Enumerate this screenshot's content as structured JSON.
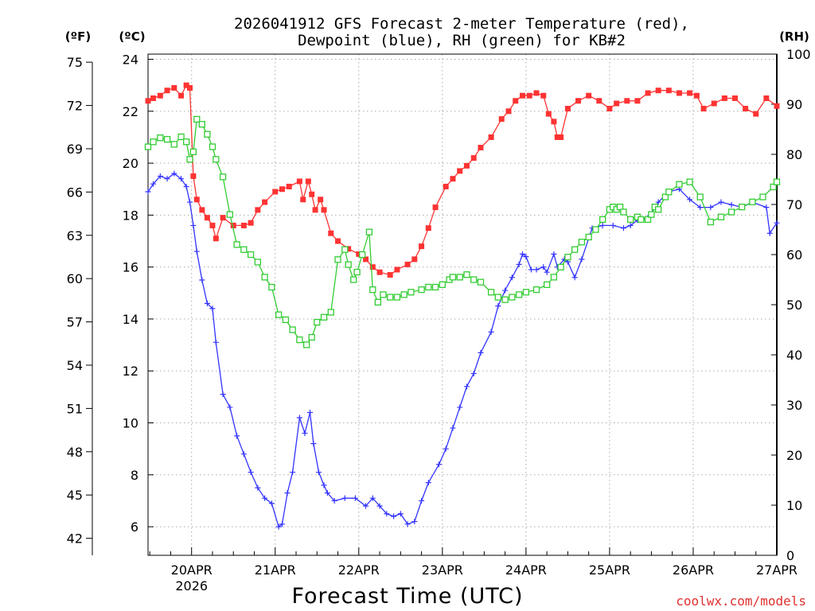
{
  "chart_data": {
    "type": "line",
    "title_line1": "2026041912 GFS Forecast 2-meter Temperature (red),",
    "title_line2": "Dewpoint (blue), RH (green) for KB#2",
    "xlabel": "Forecast Time (UTC)",
    "watermark": "coolwx.com/models",
    "unit_labels": {
      "fahrenheit": "(ºF)",
      "celsius": "(ºC)",
      "rh": "(RH)"
    },
    "x_range_hours": [
      -12.5,
      168
    ],
    "y_left_c_range": [
      4.9,
      24.2
    ],
    "y_right_rh_range": [
      0,
      100
    ],
    "x_ticks": [
      {
        "hour": 0,
        "label": "20APR",
        "sublabel": "2026"
      },
      {
        "hour": 24,
        "label": "21APR",
        "sublabel": ""
      },
      {
        "hour": 48,
        "label": "22APR",
        "sublabel": ""
      },
      {
        "hour": 72,
        "label": "23APR",
        "sublabel": ""
      },
      {
        "hour": 96,
        "label": "24APR",
        "sublabel": ""
      },
      {
        "hour": 120,
        "label": "25APR",
        "sublabel": ""
      },
      {
        "hour": 144,
        "label": "26APR",
        "sublabel": ""
      },
      {
        "hour": 168,
        "label": "27APR",
        "sublabel": ""
      }
    ],
    "y_celsius_ticks": [
      "6",
      "8",
      "10",
      "12",
      "14",
      "16",
      "18",
      "20",
      "22",
      "24"
    ],
    "y_fahrenheit_ticks": [
      "42",
      "45",
      "48",
      "51",
      "54",
      "57",
      "60",
      "63",
      "66",
      "69",
      "72",
      "75"
    ],
    "y_rh_ticks": [
      "0",
      "10",
      "20",
      "30",
      "40",
      "50",
      "60",
      "70",
      "80",
      "90",
      "100"
    ],
    "series": [
      {
        "name": "Temperature",
        "color": "#ff3333",
        "marker": "filled-square",
        "unit": "C",
        "points": [
          [
            -12.5,
            22.4
          ],
          [
            -11,
            22.5
          ],
          [
            -9,
            22.6
          ],
          [
            -7,
            22.8
          ],
          [
            -5,
            22.9
          ],
          [
            -3,
            22.6
          ],
          [
            -1.5,
            23.0
          ],
          [
            -0.5,
            22.9
          ],
          [
            0.5,
            19.5
          ],
          [
            1.5,
            18.6
          ],
          [
            3,
            18.2
          ],
          [
            4.5,
            17.9
          ],
          [
            6,
            17.6
          ],
          [
            7,
            17.1
          ],
          [
            9,
            17.9
          ],
          [
            12,
            17.6
          ],
          [
            15,
            17.6
          ],
          [
            17,
            17.7
          ],
          [
            19,
            18.2
          ],
          [
            21,
            18.5
          ],
          [
            24,
            18.9
          ],
          [
            26,
            19.0
          ],
          [
            28,
            19.1
          ],
          [
            31,
            19.3
          ],
          [
            32,
            18.6
          ],
          [
            33.5,
            19.3
          ],
          [
            34.5,
            18.8
          ],
          [
            35.5,
            18.2
          ],
          [
            37,
            18.6
          ],
          [
            38,
            18.2
          ],
          [
            40,
            17.3
          ],
          [
            42,
            17.0
          ],
          [
            45,
            16.7
          ],
          [
            48,
            16.5
          ],
          [
            50,
            16.3
          ],
          [
            52,
            16.0
          ],
          [
            54,
            15.8
          ],
          [
            57,
            15.7
          ],
          [
            59,
            15.9
          ],
          [
            62,
            16.1
          ],
          [
            64,
            16.3
          ],
          [
            66,
            16.8
          ],
          [
            68,
            17.5
          ],
          [
            70,
            18.3
          ],
          [
            73,
            19.1
          ],
          [
            75,
            19.4
          ],
          [
            77,
            19.7
          ],
          [
            79,
            19.9
          ],
          [
            81,
            20.2
          ],
          [
            83,
            20.6
          ],
          [
            86,
            21.0
          ],
          [
            89,
            21.7
          ],
          [
            91,
            22.0
          ],
          [
            93,
            22.4
          ],
          [
            95,
            22.6
          ],
          [
            97,
            22.6
          ],
          [
            99,
            22.7
          ],
          [
            101,
            22.6
          ],
          [
            102.5,
            21.9
          ],
          [
            104,
            21.6
          ],
          [
            105,
            21.0
          ],
          [
            106,
            21.0
          ],
          [
            108,
            22.1
          ],
          [
            111,
            22.4
          ],
          [
            114,
            22.6
          ],
          [
            117,
            22.4
          ],
          [
            120,
            22.1
          ],
          [
            122,
            22.3
          ],
          [
            125,
            22.4
          ],
          [
            128,
            22.4
          ],
          [
            131,
            22.7
          ],
          [
            134,
            22.8
          ],
          [
            137,
            22.8
          ],
          [
            140,
            22.7
          ],
          [
            143,
            22.7
          ],
          [
            145,
            22.6
          ],
          [
            147,
            22.1
          ],
          [
            150,
            22.3
          ],
          [
            153,
            22.5
          ],
          [
            156,
            22.5
          ],
          [
            159,
            22.1
          ],
          [
            162,
            21.9
          ],
          [
            165,
            22.5
          ],
          [
            168,
            22.2
          ]
        ]
      },
      {
        "name": "Dewpoint",
        "color": "#3333ff",
        "marker": "plus",
        "unit": "C",
        "points": [
          [
            -12.5,
            18.9
          ],
          [
            -11,
            19.2
          ],
          [
            -9,
            19.5
          ],
          [
            -7,
            19.4
          ],
          [
            -5,
            19.6
          ],
          [
            -3,
            19.4
          ],
          [
            -1.5,
            19.1
          ],
          [
            -0.5,
            18.5
          ],
          [
            0.5,
            17.6
          ],
          [
            1.5,
            16.6
          ],
          [
            3,
            15.5
          ],
          [
            4.5,
            14.6
          ],
          [
            6,
            14.4
          ],
          [
            7,
            13.1
          ],
          [
            9,
            11.1
          ],
          [
            11,
            10.6
          ],
          [
            13,
            9.5
          ],
          [
            15,
            8.8
          ],
          [
            17,
            8.1
          ],
          [
            19,
            7.5
          ],
          [
            21,
            7.1
          ],
          [
            23,
            6.9
          ],
          [
            25,
            6.0
          ],
          [
            26,
            6.1
          ],
          [
            27.5,
            7.3
          ],
          [
            29,
            8.1
          ],
          [
            31,
            10.2
          ],
          [
            32.5,
            9.6
          ],
          [
            34,
            10.4
          ],
          [
            35,
            9.2
          ],
          [
            36.5,
            8.1
          ],
          [
            38,
            7.6
          ],
          [
            39,
            7.3
          ],
          [
            41,
            7.0
          ],
          [
            44,
            7.1
          ],
          [
            47,
            7.1
          ],
          [
            50,
            6.8
          ],
          [
            52,
            7.1
          ],
          [
            54,
            6.8
          ],
          [
            56,
            6.5
          ],
          [
            58,
            6.4
          ],
          [
            60,
            6.5
          ],
          [
            62,
            6.1
          ],
          [
            64,
            6.2
          ],
          [
            66,
            7.0
          ],
          [
            68,
            7.7
          ],
          [
            71,
            8.4
          ],
          [
            73,
            9.0
          ],
          [
            75,
            9.8
          ],
          [
            77,
            10.6
          ],
          [
            79,
            11.4
          ],
          [
            81,
            11.9
          ],
          [
            83,
            12.7
          ],
          [
            86,
            13.5
          ],
          [
            88,
            14.5
          ],
          [
            90,
            15.1
          ],
          [
            92,
            15.6
          ],
          [
            94,
            16.1
          ],
          [
            95,
            16.5
          ],
          [
            96,
            16.4
          ],
          [
            97.5,
            15.9
          ],
          [
            99,
            15.9
          ],
          [
            101,
            16.0
          ],
          [
            102,
            15.8
          ],
          [
            104,
            16.5
          ],
          [
            105,
            16.0
          ],
          [
            107,
            16.3
          ],
          [
            108,
            16.2
          ],
          [
            110,
            15.6
          ],
          [
            112,
            16.3
          ],
          [
            115,
            17.5
          ],
          [
            118,
            17.6
          ],
          [
            121,
            17.6
          ],
          [
            124,
            17.5
          ],
          [
            126,
            17.6
          ],
          [
            128,
            17.8
          ],
          [
            131,
            17.9
          ],
          [
            134,
            18.5
          ],
          [
            137,
            18.9
          ],
          [
            140,
            19.0
          ],
          [
            143,
            18.6
          ],
          [
            146,
            18.3
          ],
          [
            149,
            18.3
          ],
          [
            152,
            18.5
          ],
          [
            155,
            18.4
          ],
          [
            158,
            18.3
          ],
          [
            161,
            18.5
          ],
          [
            165,
            18.3
          ],
          [
            166,
            17.3
          ],
          [
            168,
            17.7
          ]
        ]
      },
      {
        "name": "RH",
        "color": "#33cc33",
        "marker": "open-square",
        "unit": "%",
        "points": [
          [
            -12.5,
            81.5
          ],
          [
            -11,
            82.5
          ],
          [
            -9,
            83.3
          ],
          [
            -7,
            83.0
          ],
          [
            -5,
            82.0
          ],
          [
            -3,
            83.5
          ],
          [
            -1.5,
            82.5
          ],
          [
            -0.5,
            79.0
          ],
          [
            0.5,
            80.5
          ],
          [
            1.5,
            87.0
          ],
          [
            3,
            86.0
          ],
          [
            4.5,
            84.0
          ],
          [
            6,
            81.5
          ],
          [
            7,
            79.0
          ],
          [
            9,
            75.5
          ],
          [
            11,
            68.0
          ],
          [
            13,
            62.0
          ],
          [
            15,
            61.0
          ],
          [
            17,
            60.0
          ],
          [
            19,
            58.5
          ],
          [
            21,
            55.5
          ],
          [
            23,
            53.5
          ],
          [
            25,
            48.0
          ],
          [
            27,
            47.0
          ],
          [
            29,
            45.0
          ],
          [
            31,
            43.0
          ],
          [
            33,
            42.0
          ],
          [
            34.5,
            43.5
          ],
          [
            36,
            46.5
          ],
          [
            38,
            47.5
          ],
          [
            40,
            48.5
          ],
          [
            42,
            59.0
          ],
          [
            44,
            61.0
          ],
          [
            45,
            58.0
          ],
          [
            46.5,
            55.0
          ],
          [
            47.5,
            56.5
          ],
          [
            49,
            60.0
          ],
          [
            51,
            64.5
          ],
          [
            52,
            53.0
          ],
          [
            53.5,
            50.5
          ],
          [
            55,
            52.0
          ],
          [
            57,
            51.5
          ],
          [
            59,
            51.5
          ],
          [
            61,
            52.0
          ],
          [
            63,
            52.5
          ],
          [
            66,
            53.0
          ],
          [
            68,
            53.5
          ],
          [
            70,
            53.5
          ],
          [
            72,
            54.0
          ],
          [
            74,
            55.0
          ],
          [
            75,
            55.5
          ],
          [
            77,
            55.5
          ],
          [
            79,
            56.0
          ],
          [
            81,
            55.0
          ],
          [
            83,
            54.5
          ],
          [
            86,
            52.5
          ],
          [
            88,
            51.5
          ],
          [
            90,
            51.0
          ],
          [
            92,
            51.5
          ],
          [
            94,
            52.0
          ],
          [
            96,
            52.5
          ],
          [
            99,
            53.0
          ],
          [
            102,
            54.0
          ],
          [
            104,
            55.5
          ],
          [
            106,
            57.5
          ],
          [
            108,
            59.5
          ],
          [
            110,
            61.0
          ],
          [
            112,
            62.5
          ],
          [
            114,
            63.5
          ],
          [
            116,
            65.0
          ],
          [
            118,
            67.0
          ],
          [
            120,
            69.0
          ],
          [
            121,
            69.5
          ],
          [
            122,
            69.0
          ],
          [
            123,
            69.5
          ],
          [
            124,
            68.5
          ],
          [
            126,
            67.0
          ],
          [
            128,
            67.5
          ],
          [
            129,
            67.0
          ],
          [
            131,
            67.0
          ],
          [
            132,
            68.0
          ],
          [
            133,
            69.5
          ],
          [
            134,
            69.0
          ],
          [
            136,
            71.5
          ],
          [
            137,
            72.5
          ],
          [
            140,
            74.0
          ],
          [
            143,
            74.5
          ],
          [
            146,
            71.5
          ],
          [
            149,
            66.5
          ],
          [
            152,
            67.5
          ],
          [
            155,
            68.5
          ],
          [
            158,
            69.5
          ],
          [
            161,
            70.5
          ],
          [
            164,
            71.5
          ],
          [
            167,
            73.5
          ],
          [
            168,
            74.5
          ]
        ]
      }
    ]
  }
}
